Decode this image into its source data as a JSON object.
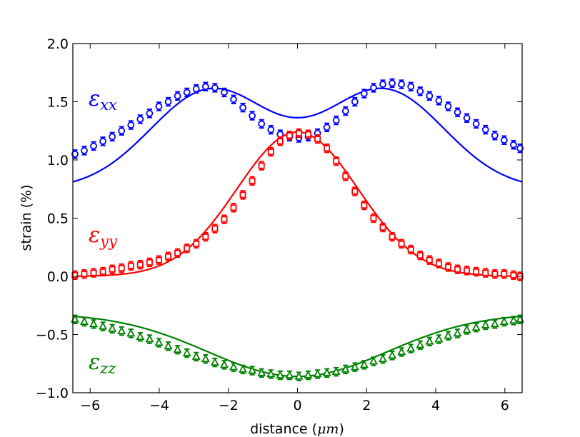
{
  "chart_data": {
    "type": "scatter",
    "title": "",
    "xlabel_text": "distance (",
    "xlabel_unit": "μm",
    "xlabel_close": ")",
    "ylabel": "strain (%)",
    "xlim": [
      -6.5,
      6.5
    ],
    "ylim": [
      -1.0,
      2.0
    ],
    "x_ticks": [
      -6,
      -4,
      -2,
      0,
      2,
      4,
      6
    ],
    "x_tick_labels": [
      "−6",
      "−4",
      "−2",
      "0",
      "2",
      "4",
      "6"
    ],
    "y_ticks": [
      -1.0,
      -0.5,
      0.0,
      0.5,
      1.0,
      1.5,
      2.0
    ],
    "y_tick_labels": [
      "−1.0",
      "−0.5",
      "0.0",
      "0.5",
      "1.0",
      "1.5",
      "2.0"
    ],
    "grid": false,
    "series": [
      {
        "name": "εxx",
        "label_main": "ε",
        "label_sub": "xx",
        "color": "#0000ff",
        "marker": "circle",
        "fit": {
          "base": 0.75,
          "amp1": 0.85,
          "center1": -2.5,
          "width1": 1.75,
          "amp2": 0.85,
          "center2": 2.5,
          "width2": 1.75
        },
        "points": [
          [
            -6.44,
            1.05
          ],
          [
            -6.17,
            1.08
          ],
          [
            -5.9,
            1.12
          ],
          [
            -5.63,
            1.16
          ],
          [
            -5.36,
            1.2
          ],
          [
            -5.09,
            1.25
          ],
          [
            -4.82,
            1.3
          ],
          [
            -4.55,
            1.35
          ],
          [
            -4.28,
            1.4
          ],
          [
            -4.01,
            1.46
          ],
          [
            -3.74,
            1.5
          ],
          [
            -3.47,
            1.55
          ],
          [
            -3.2,
            1.58
          ],
          [
            -2.93,
            1.61
          ],
          [
            -2.66,
            1.63
          ],
          [
            -2.39,
            1.62
          ],
          [
            -2.12,
            1.58
          ],
          [
            -1.85,
            1.52
          ],
          [
            -1.58,
            1.45
          ],
          [
            -1.31,
            1.38
          ],
          [
            -1.04,
            1.31
          ],
          [
            -0.77,
            1.26
          ],
          [
            -0.5,
            1.22
          ],
          [
            -0.23,
            1.2
          ],
          [
            0.04,
            1.19
          ],
          [
            0.31,
            1.2
          ],
          [
            0.58,
            1.23
          ],
          [
            0.85,
            1.28
          ],
          [
            1.12,
            1.34
          ],
          [
            1.39,
            1.42
          ],
          [
            1.66,
            1.5
          ],
          [
            1.93,
            1.57
          ],
          [
            2.2,
            1.62
          ],
          [
            2.47,
            1.65
          ],
          [
            2.74,
            1.66
          ],
          [
            3.01,
            1.65
          ],
          [
            3.28,
            1.63
          ],
          [
            3.55,
            1.59
          ],
          [
            3.82,
            1.55
          ],
          [
            4.09,
            1.51
          ],
          [
            4.36,
            1.46
          ],
          [
            4.63,
            1.41
          ],
          [
            4.9,
            1.36
          ],
          [
            5.17,
            1.31
          ],
          [
            5.44,
            1.26
          ],
          [
            5.71,
            1.21
          ],
          [
            5.98,
            1.17
          ],
          [
            6.25,
            1.13
          ],
          [
            6.44,
            1.1
          ]
        ]
      },
      {
        "name": "εyy",
        "label_main": "ε",
        "label_sub": "yy",
        "color": "#ff0000",
        "marker": "square",
        "fit": {
          "base": 0.0,
          "amp": 1.24,
          "sigma": 1.75
        },
        "points": [
          [
            -6.44,
            0.01
          ],
          [
            -6.17,
            0.02
          ],
          [
            -5.9,
            0.03
          ],
          [
            -5.63,
            0.04
          ],
          [
            -5.36,
            0.06
          ],
          [
            -5.09,
            0.07
          ],
          [
            -4.82,
            0.09
          ],
          [
            -4.55,
            0.1
          ],
          [
            -4.28,
            0.12
          ],
          [
            -4.01,
            0.14
          ],
          [
            -3.74,
            0.17
          ],
          [
            -3.47,
            0.2
          ],
          [
            -3.2,
            0.24
          ],
          [
            -2.93,
            0.28
          ],
          [
            -2.66,
            0.34
          ],
          [
            -2.39,
            0.41
          ],
          [
            -2.12,
            0.49
          ],
          [
            -1.85,
            0.59
          ],
          [
            -1.58,
            0.7
          ],
          [
            -1.31,
            0.82
          ],
          [
            -1.04,
            0.95
          ],
          [
            -0.77,
            1.07
          ],
          [
            -0.5,
            1.16
          ],
          [
            -0.23,
            1.21
          ],
          [
            0.04,
            1.23
          ],
          [
            0.31,
            1.22
          ],
          [
            0.58,
            1.18
          ],
          [
            0.85,
            1.1
          ],
          [
            1.12,
            0.99
          ],
          [
            1.39,
            0.86
          ],
          [
            1.66,
            0.73
          ],
          [
            1.93,
            0.61
          ],
          [
            2.2,
            0.5
          ],
          [
            2.47,
            0.42
          ],
          [
            2.74,
            0.34
          ],
          [
            3.01,
            0.28
          ],
          [
            3.28,
            0.23
          ],
          [
            3.55,
            0.18
          ],
          [
            3.82,
            0.14
          ],
          [
            4.09,
            0.11
          ],
          [
            4.36,
            0.08
          ],
          [
            4.63,
            0.06
          ],
          [
            4.9,
            0.05
          ],
          [
            5.17,
            0.04
          ],
          [
            5.44,
            0.03
          ],
          [
            5.71,
            0.02
          ],
          [
            5.98,
            0.02
          ],
          [
            6.25,
            0.01
          ],
          [
            6.44,
            0.0
          ]
        ]
      },
      {
        "name": "εzz",
        "label_main": "ε",
        "label_sub": "zz",
        "color": "#008000",
        "marker": "triangle",
        "fit": {
          "base": -0.32,
          "amp": -0.54,
          "sigma": 2.6
        },
        "points": [
          [
            -6.44,
            -0.37
          ],
          [
            -6.17,
            -0.39
          ],
          [
            -5.9,
            -0.41
          ],
          [
            -5.63,
            -0.43
          ],
          [
            -5.36,
            -0.45
          ],
          [
            -5.09,
            -0.47
          ],
          [
            -4.82,
            -0.49
          ],
          [
            -4.55,
            -0.52
          ],
          [
            -4.28,
            -0.54
          ],
          [
            -4.01,
            -0.57
          ],
          [
            -3.74,
            -0.6
          ],
          [
            -3.47,
            -0.63
          ],
          [
            -3.2,
            -0.66
          ],
          [
            -2.93,
            -0.69
          ],
          [
            -2.66,
            -0.71
          ],
          [
            -2.39,
            -0.74
          ],
          [
            -2.12,
            -0.76
          ],
          [
            -1.85,
            -0.78
          ],
          [
            -1.58,
            -0.8
          ],
          [
            -1.31,
            -0.81
          ],
          [
            -1.04,
            -0.83
          ],
          [
            -0.77,
            -0.84
          ],
          [
            -0.5,
            -0.85
          ],
          [
            -0.23,
            -0.85
          ],
          [
            0.04,
            -0.86
          ],
          [
            0.31,
            -0.85
          ],
          [
            0.58,
            -0.84
          ],
          [
            0.85,
            -0.83
          ],
          [
            1.12,
            -0.82
          ],
          [
            1.39,
            -0.8
          ],
          [
            1.66,
            -0.78
          ],
          [
            1.93,
            -0.76
          ],
          [
            2.2,
            -0.73
          ],
          [
            2.47,
            -0.71
          ],
          [
            2.74,
            -0.68
          ],
          [
            3.01,
            -0.65
          ],
          [
            3.28,
            -0.62
          ],
          [
            3.55,
            -0.59
          ],
          [
            3.82,
            -0.56
          ],
          [
            4.09,
            -0.54
          ],
          [
            4.36,
            -0.51
          ],
          [
            4.63,
            -0.49
          ],
          [
            4.9,
            -0.46
          ],
          [
            5.17,
            -0.44
          ],
          [
            5.44,
            -0.42
          ],
          [
            5.71,
            -0.41
          ],
          [
            5.98,
            -0.39
          ],
          [
            6.25,
            -0.38
          ],
          [
            6.44,
            -0.37
          ]
        ]
      }
    ]
  }
}
